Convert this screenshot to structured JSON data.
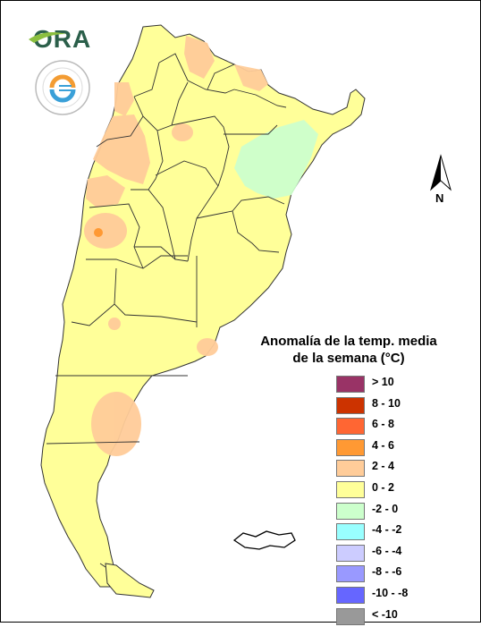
{
  "logo": {
    "text": "ORA",
    "seal_text": "SERVICIO METEOROLÓGICO NACIONAL · ARGENTINA"
  },
  "north_label": "N",
  "legend": {
    "title_line1": "Anomalía de la temp. media",
    "title_line2": "de la semana (°C)",
    "items": [
      {
        "label": "> 10",
        "color": "#993366"
      },
      {
        "label": "8 - 10",
        "color": "#cc3300"
      },
      {
        "label": "6 - 8",
        "color": "#ff6633"
      },
      {
        "label": "4 - 6",
        "color": "#ff9933"
      },
      {
        "label": "2 - 4",
        "color": "#ffcc99"
      },
      {
        "label": "0 - 2",
        "color": "#ffff99"
      },
      {
        "label": "-2 - 0",
        "color": "#ccffcc"
      },
      {
        "label": "-4 - -2",
        "color": "#99ffff"
      },
      {
        "label": "-6 - -4",
        "color": "#ccccff"
      },
      {
        "label": "-8 - -6",
        "color": "#9999ff"
      },
      {
        "label": "-10 - -8",
        "color": "#6666ff"
      },
      {
        "label": "< -10",
        "color": "#999999"
      }
    ]
  }
}
